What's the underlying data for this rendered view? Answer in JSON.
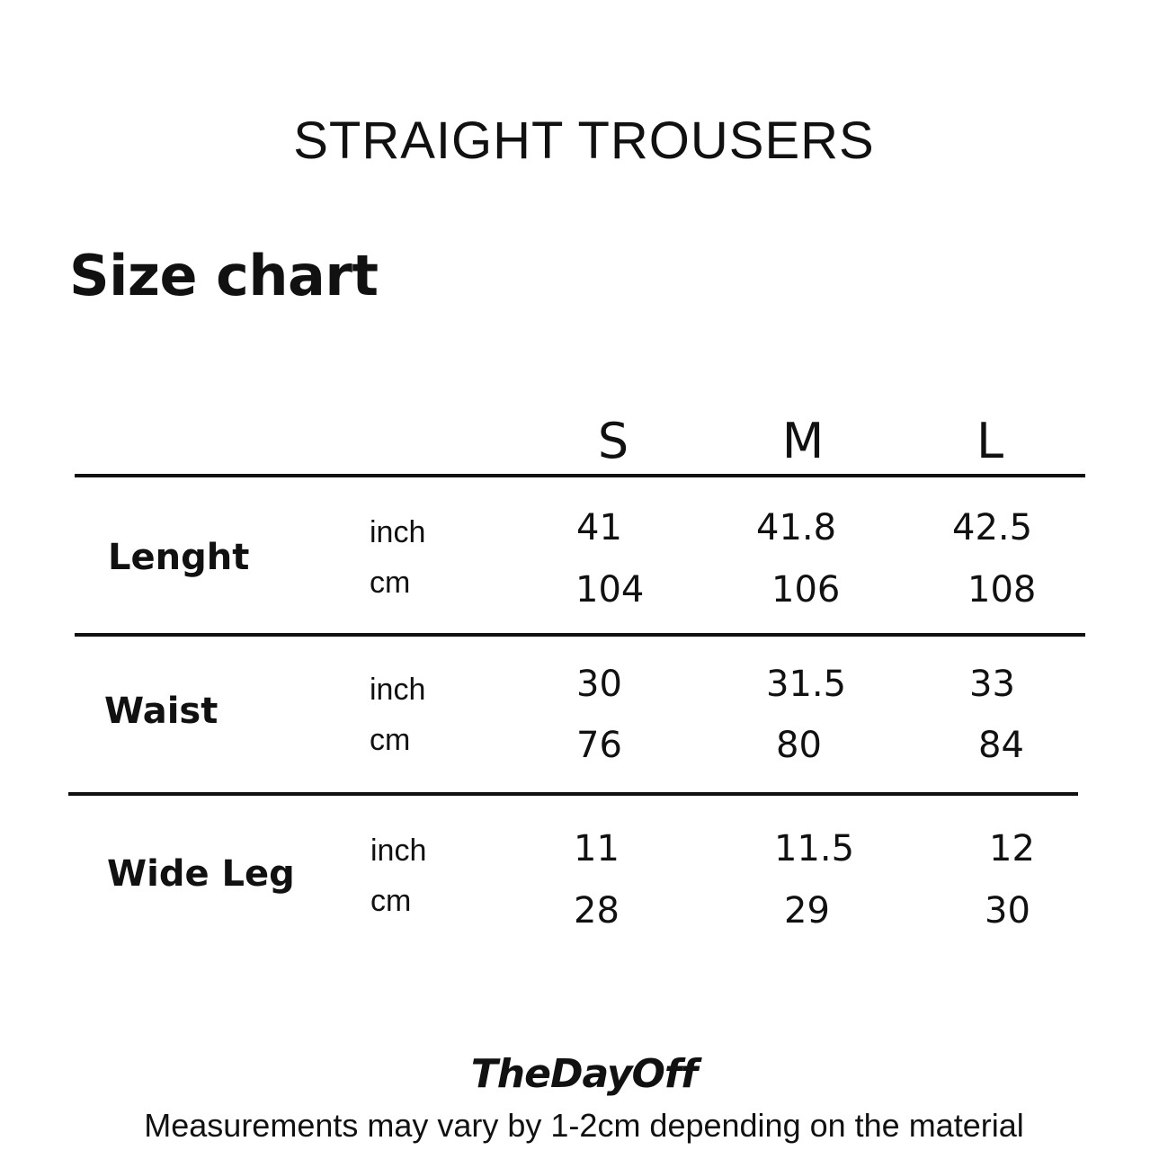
{
  "title": "STRAIGHT TROUSERS",
  "subtitle": "Size chart",
  "sizes": [
    "S",
    "M",
    "L"
  ],
  "rows": [
    {
      "label": "Lenght",
      "units": [
        "inch",
        "cm"
      ],
      "values": [
        [
          "41",
          "41.8",
          "42.5"
        ],
        [
          "104",
          "106",
          "108"
        ]
      ]
    },
    {
      "label": "Waist",
      "units": [
        "inch",
        "cm"
      ],
      "values": [
        [
          "30",
          "31.5",
          "33"
        ],
        [
          "76",
          "80",
          "84"
        ]
      ]
    },
    {
      "label": "Wide Leg",
      "units": [
        "inch",
        "cm"
      ],
      "values": [
        [
          "11",
          "11.5",
          "12"
        ],
        [
          "28",
          "29",
          "30"
        ]
      ]
    }
  ],
  "footer": {
    "brand": "TheDayOff",
    "note": "Measurements may vary by 1-2cm depending on the material"
  }
}
